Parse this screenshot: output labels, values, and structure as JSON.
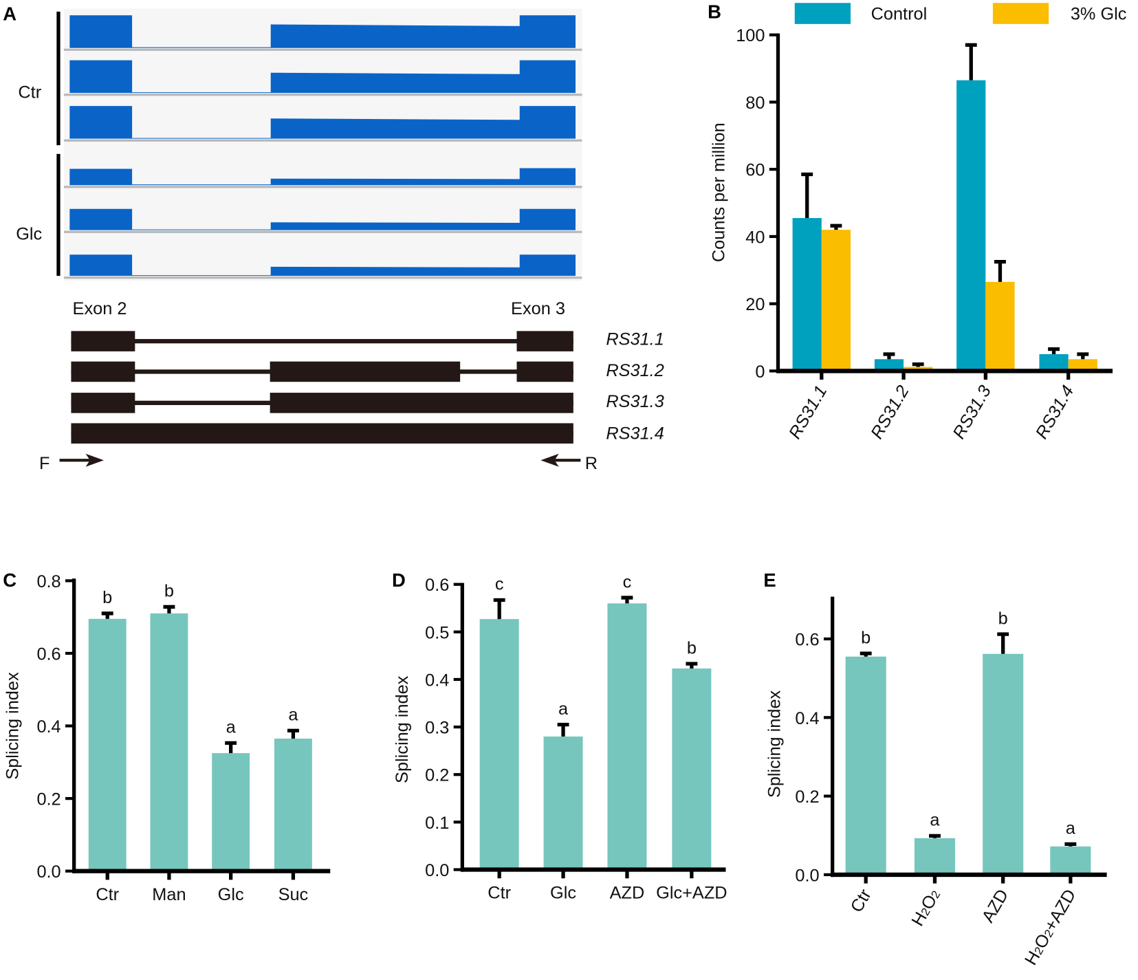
{
  "panel_a": {
    "label": "A",
    "groups": [
      "Ctr",
      "Glc"
    ],
    "tracks": [
      {
        "group": "Ctr",
        "exon2": 1.0,
        "mid": 0.72,
        "exon3": 1.0
      },
      {
        "group": "Ctr",
        "exon2": 1.0,
        "mid": 0.62,
        "exon3": 1.0
      },
      {
        "group": "Ctr",
        "exon2": 1.0,
        "mid": 0.62,
        "exon3": 1.0
      },
      {
        "group": "Glc",
        "exon2": 0.5,
        "mid": 0.2,
        "exon3": 0.52
      },
      {
        "group": "Glc",
        "exon2": 0.65,
        "mid": 0.24,
        "exon3": 0.65
      },
      {
        "group": "Glc",
        "exon2": 0.65,
        "mid": 0.28,
        "exon3": 0.65
      }
    ],
    "exon_labels": [
      "Exon 2",
      "Exon 3"
    ],
    "isoforms": [
      "RS31.1",
      "RS31.2",
      "RS31.3",
      "RS31.4"
    ],
    "primer_f": "F",
    "primer_r": "R",
    "colors": {
      "coverage": "#0a64c8",
      "track_bg": "#f6f6f6",
      "gene": "#231815"
    }
  },
  "chart_data": [
    {
      "panel": "B",
      "type": "bar",
      "title": "",
      "xlabel": "",
      "ylabel": "Counts per million",
      "categories": [
        "RS31.1",
        "RS31.2",
        "RS31.3",
        "RS31.4"
      ],
      "series": [
        {
          "name": "Control",
          "color": "#00a0bf",
          "values": [
            45.5,
            3.5,
            86.5,
            5.0
          ],
          "errors": [
            13,
            1.5,
            10.5,
            1.5
          ]
        },
        {
          "name": "3% Glc",
          "color": "#fbbd00",
          "values": [
            42.0,
            1.2,
            26.5,
            3.5
          ],
          "errors": [
            1.2,
            0.8,
            6,
            1.5
          ]
        }
      ],
      "ylim": [
        0,
        100
      ],
      "yticks": [
        "0",
        "20",
        "40",
        "60",
        "80",
        "100"
      ],
      "legend": "top"
    },
    {
      "panel": "C",
      "type": "bar",
      "ylabel": "Splicing index",
      "categories": [
        "Ctr",
        "Man",
        "Glc",
        "Suc"
      ],
      "values": [
        0.695,
        0.71,
        0.325,
        0.365
      ],
      "errors": [
        0.015,
        0.018,
        0.028,
        0.022
      ],
      "letters": [
        "b",
        "b",
        "a",
        "a"
      ],
      "ylim": [
        0,
        0.8
      ],
      "yticks": [
        "0.0",
        "0.2",
        "0.4",
        "0.6",
        "0.8"
      ],
      "color": "#76c6bd"
    },
    {
      "panel": "D",
      "type": "bar",
      "ylabel": "Splicing index",
      "categories": [
        "Ctr",
        "Glc",
        "AZD",
        "Glc+AZD"
      ],
      "values": [
        0.527,
        0.28,
        0.56,
        0.423
      ],
      "errors": [
        0.04,
        0.025,
        0.012,
        0.01
      ],
      "letters": [
        "c",
        "a",
        "c",
        "b"
      ],
      "ylim": [
        0,
        0.6
      ],
      "yticks": [
        "0.0",
        "0.1",
        "0.2",
        "0.3",
        "0.4",
        "0.5",
        "0.6"
      ],
      "color": "#76c6bd"
    },
    {
      "panel": "E",
      "type": "bar",
      "ylabel": "Splicing index",
      "categories": [
        "Ctr",
        "H2O2",
        "AZD",
        "H2O2+AZD"
      ],
      "values": [
        0.555,
        0.093,
        0.562,
        0.072
      ],
      "errors": [
        0.008,
        0.006,
        0.05,
        0.006
      ],
      "letters": [
        "b",
        "a",
        "b",
        "a"
      ],
      "ylim": [
        0,
        0.7
      ],
      "yticks": [
        "0.0",
        "0.2",
        "0.4",
        "0.6"
      ],
      "color": "#76c6bd"
    }
  ]
}
